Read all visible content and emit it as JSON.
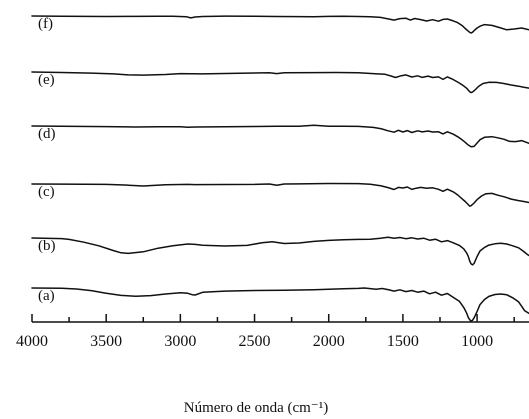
{
  "chart_data": {
    "type": "line",
    "title": "",
    "xlabel": "Número de onda (cm⁻¹)",
    "ylabel": "",
    "xlim": [
      4000,
      650
    ],
    "x_reversed": true,
    "y_axis_visible": false,
    "grid": false,
    "legend": "none",
    "x_ticks": [
      4000,
      3500,
      3000,
      2500,
      2000,
      1500,
      1000
    ],
    "x_tick_labels": [
      "4000",
      "3500",
      "3000",
      "2500",
      "2000",
      "1500",
      "1000"
    ],
    "series": [
      {
        "label": "(f)",
        "x": [
          4000,
          3800,
          3500,
          3300,
          3150,
          3050,
          2960,
          2930,
          2900,
          2850,
          2700,
          2500,
          2350,
          2200,
          2100,
          2000,
          1900,
          1800,
          1720,
          1650,
          1600,
          1560,
          1520,
          1480,
          1450,
          1420,
          1380,
          1340,
          1300,
          1260,
          1230,
          1200,
          1160,
          1130,
          1100,
          1080,
          1060,
          1050,
          1040,
          1030,
          1020,
          1000,
          980,
          950,
          900,
          850,
          800,
          750,
          700,
          650
        ],
        "y": [
          0,
          0.2,
          0.4,
          0.3,
          0.2,
          0.2,
          0.6,
          1.6,
          0.8,
          0.4,
          0.1,
          0.2,
          0.4,
          0.5,
          0.6,
          0.3,
          0.2,
          0.4,
          0.6,
          1.2,
          2.4,
          3.4,
          2.2,
          1.8,
          3.4,
          2.1,
          3.0,
          4.2,
          3.1,
          4.3,
          2.8,
          2.5,
          4.1,
          5.6,
          8.0,
          10.4,
          12.6,
          13.6,
          14.2,
          13.5,
          12.2,
          10.0,
          8.5,
          7.2,
          7.8,
          9.6,
          11.5,
          10.8,
          10.0,
          11.5
        ]
      },
      {
        "label": "(e)",
        "x": [
          4000,
          3800,
          3600,
          3450,
          3350,
          3250,
          3100,
          3000,
          2930,
          2850,
          2600,
          2400,
          2350,
          2300,
          2100,
          1950,
          1800,
          1700,
          1620,
          1580,
          1550,
          1510,
          1480,
          1440,
          1400,
          1370,
          1330,
          1300,
          1260,
          1230,
          1200,
          1160,
          1120,
          1090,
          1070,
          1050,
          1040,
          1030,
          1010,
          990,
          960,
          920,
          870,
          820,
          770,
          720,
          690,
          650
        ],
        "y": [
          0,
          0.4,
          0.9,
          1.6,
          2.4,
          2.6,
          2.1,
          1.3,
          1.4,
          1.6,
          1.1,
          0.7,
          1.3,
          0.6,
          0.5,
          0.4,
          0.6,
          1.3,
          1.9,
          3.3,
          4.6,
          3.1,
          2.4,
          4.2,
          3.2,
          4.5,
          3.4,
          4.6,
          4.1,
          6.2,
          4.1,
          6.3,
          9.2,
          11.6,
          13.6,
          16.4,
          17.2,
          16.6,
          14.5,
          12.0,
          9.6,
          8.6,
          8.7,
          9.6,
          10.8,
          11.8,
          12.6,
          13.4
        ]
      },
      {
        "label": "(d)",
        "x": [
          4000,
          3800,
          3500,
          3300,
          3150,
          3000,
          2950,
          2900,
          2700,
          2500,
          2350,
          2200,
          2100,
          2000,
          1900,
          1800,
          1700,
          1650,
          1600,
          1560,
          1530,
          1500,
          1470,
          1440,
          1400,
          1370,
          1330,
          1300,
          1260,
          1230,
          1200,
          1160,
          1130,
          1100,
          1080,
          1060,
          1040,
          1020,
          1000,
          980,
          950,
          900,
          860,
          820,
          780,
          740,
          700,
          650
        ],
        "y": [
          0,
          0.2,
          0.5,
          0.8,
          0.7,
          0.6,
          1.0,
          0.8,
          0.6,
          0.4,
          0.2,
          0.2,
          -0.6,
          0.2,
          0.2,
          0.3,
          1.2,
          2.2,
          4.0,
          5.2,
          3.6,
          5.0,
          3.8,
          5.4,
          4.0,
          4.9,
          4.2,
          5.0,
          4.8,
          6.6,
          4.8,
          6.8,
          9.0,
          11.6,
          13.6,
          15.8,
          17.3,
          17.0,
          14.2,
          11.4,
          9.4,
          8.9,
          9.8,
          11.0,
          12.8,
          13.0,
          12.2,
          14.4
        ]
      },
      {
        "label": "(c)",
        "x": [
          4000,
          3800,
          3500,
          3350,
          3250,
          3100,
          2950,
          2900,
          2700,
          2500,
          2400,
          2350,
          2300,
          2200,
          2000,
          1800,
          1720,
          1650,
          1600,
          1560,
          1530,
          1500,
          1470,
          1440,
          1410,
          1380,
          1340,
          1300,
          1260,
          1230,
          1200,
          1160,
          1130,
          1100,
          1080,
          1060,
          1050,
          1040,
          1020,
          1000,
          970,
          940,
          900,
          860,
          820,
          770,
          720,
          680,
          650
        ],
        "y": [
          0,
          0.1,
          0.3,
          1.0,
          1.7,
          0.7,
          0.3,
          0.5,
          0.4,
          0.3,
          0.0,
          1.1,
          0.0,
          -0.1,
          -0.4,
          -0.3,
          0.2,
          1.4,
          3.0,
          4.6,
          2.8,
          3.3,
          2.5,
          4.5,
          3.5,
          2.8,
          3.6,
          3.2,
          4.4,
          6.1,
          4.3,
          6.6,
          9.2,
          12.4,
          14.6,
          17.2,
          18.4,
          18.1,
          15.8,
          13.0,
          10.0,
          8.1,
          7.8,
          9.3,
          10.6,
          12.6,
          13.8,
          14.7,
          15.4
        ]
      },
      {
        "label": "(b)",
        "x": [
          4000,
          3800,
          3750,
          3650,
          3550,
          3450,
          3400,
          3350,
          3250,
          3150,
          3050,
          2950,
          2900,
          2850,
          2700,
          2550,
          2450,
          2380,
          2300,
          2200,
          2100,
          2000,
          1900,
          1800,
          1720,
          1650,
          1600,
          1560,
          1520,
          1480,
          1440,
          1400,
          1360,
          1320,
          1280,
          1240,
          1200,
          1160,
          1120,
          1090,
          1070,
          1060,
          1050,
          1040,
          1030,
          1020,
          1000,
          980,
          950,
          920,
          880,
          840,
          800,
          760,
          720,
          690,
          660,
          650
        ],
        "y": [
          0,
          0.5,
          1.2,
          3.5,
          6.5,
          10.5,
          12.3,
          12.8,
          11.5,
          8.5,
          6.5,
          5.0,
          5.3,
          6.0,
          6.7,
          6.2,
          4.0,
          3.2,
          4.6,
          4.2,
          2.8,
          2.0,
          1.5,
          1.2,
          1.0,
          0.2,
          -0.6,
          0.2,
          -0.4,
          0.6,
          -0.2,
          0.8,
          0.2,
          1.8,
          1.0,
          3.2,
          2.2,
          4.0,
          6.2,
          9.0,
          12.6,
          15.2,
          19.2,
          21.6,
          22.4,
          21.2,
          15.4,
          10.8,
          7.8,
          5.9,
          4.8,
          4.4,
          5.0,
          6.5,
          8.2,
          10.8,
          13.8,
          14.6
        ]
      },
      {
        "label": "(a)",
        "x": [
          4000,
          3800,
          3700,
          3600,
          3500,
          3400,
          3300,
          3200,
          3100,
          3000,
          2950,
          2920,
          2900,
          2850,
          2700,
          2500,
          2300,
          2100,
          2000,
          1900,
          1800,
          1760,
          1720,
          1680,
          1640,
          1600,
          1560,
          1520,
          1480,
          1440,
          1400,
          1360,
          1320,
          1280,
          1240,
          1200,
          1160,
          1120,
          1090,
          1070,
          1060,
          1050,
          1040,
          1030,
          1020,
          1000,
          980,
          950,
          920,
          880,
          840,
          800,
          760,
          720,
          700,
          680,
          650
        ],
        "y": [
          0,
          0.2,
          0.8,
          2.2,
          4.4,
          6.2,
          6.8,
          6.3,
          5.0,
          4.0,
          4.4,
          5.6,
          5.8,
          3.6,
          2.6,
          2.1,
          1.8,
          1.4,
          1.0,
          0.6,
          0.3,
          0.0,
          0.5,
          1.0,
          0.4,
          1.3,
          2.6,
          1.5,
          3.0,
          2.1,
          3.5,
          2.6,
          4.8,
          3.5,
          6.0,
          4.6,
          7.8,
          11.0,
          16.2,
          21.0,
          24.4,
          26.4,
          27.6,
          26.8,
          24.8,
          19.6,
          13.8,
          9.6,
          7.0,
          5.4,
          5.0,
          5.6,
          8.2,
          11.6,
          15.2,
          18.8,
          21.2
        ]
      }
    ]
  }
}
